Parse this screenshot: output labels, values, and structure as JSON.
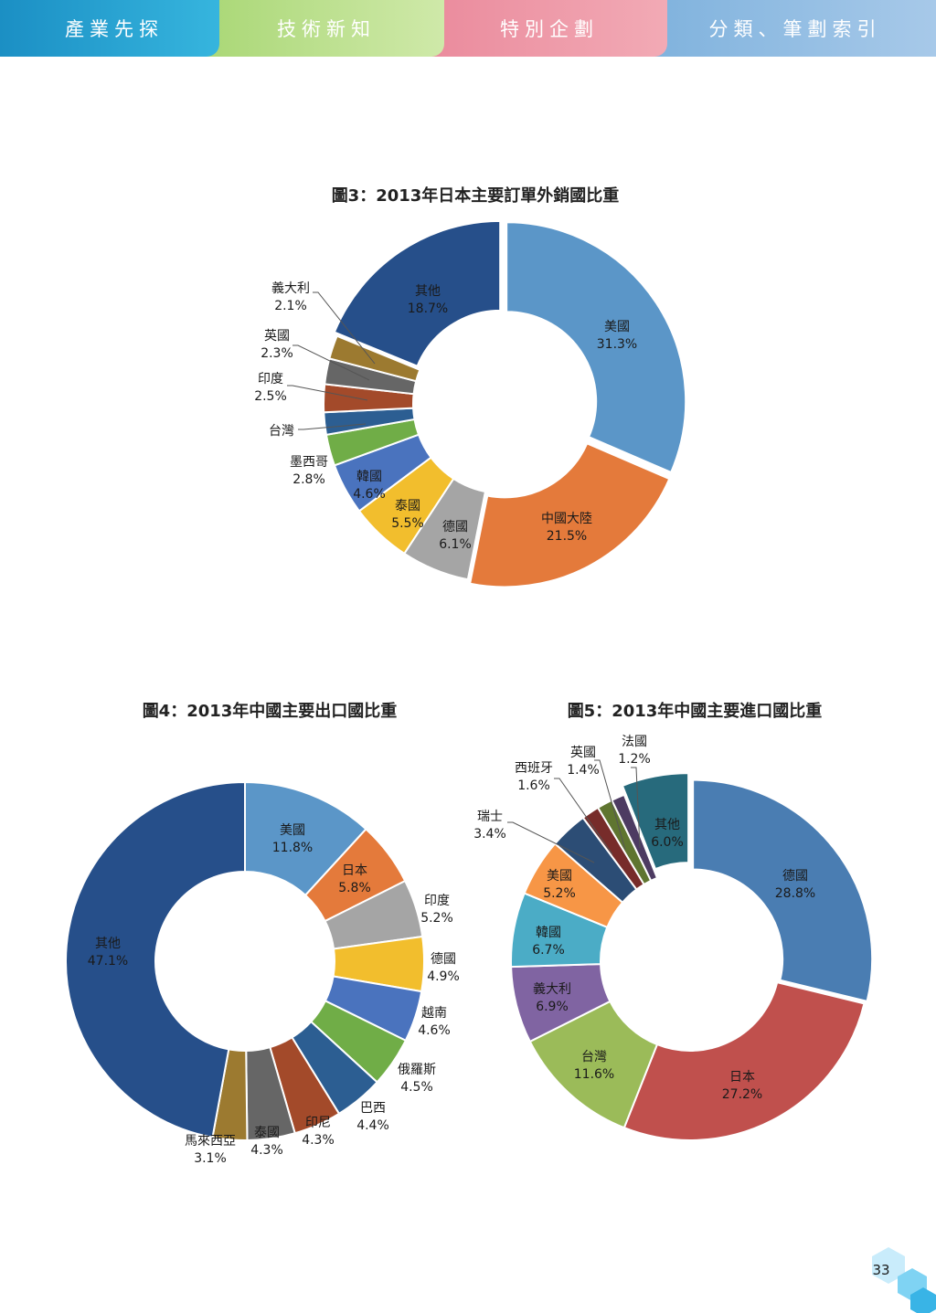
{
  "nav": {
    "tabs": [
      {
        "label": "產業先探"
      },
      {
        "label": "技術新知"
      },
      {
        "label": "特別企劃"
      },
      {
        "label": "分類、筆劃索引"
      }
    ]
  },
  "page_number": "33",
  "chart_data": [
    {
      "type": "pie",
      "title": "圖3：2013年日本主要訂單外銷國比重",
      "slices": [
        {
          "label": "美國",
          "value": 31.3,
          "value_text": "31.3%",
          "color": "#5b96c8"
        },
        {
          "label": "中國大陸",
          "value": 21.5,
          "value_text": "21.5%",
          "color": "#e47a3b"
        },
        {
          "label": "德國",
          "value": 6.1,
          "value_text": "6.1%",
          "color": "#a5a5a5"
        },
        {
          "label": "泰國",
          "value": 5.5,
          "value_text": "5.5%",
          "color": "#f2be2d"
        },
        {
          "label": "韓國",
          "value": 4.6,
          "value_text": "4.6%",
          "color": "#4a73be"
        },
        {
          "label": "墨西哥",
          "value": 2.8,
          "value_text": "2.8%",
          "color": "#70ad47"
        },
        {
          "label": "台灣",
          "value": 2.0,
          "value_text": "",
          "color": "#2c5e92"
        },
        {
          "label": "印度",
          "value": 2.5,
          "value_text": "2.5%",
          "color": "#a34a2a"
        },
        {
          "label": "英國",
          "value": 2.3,
          "value_text": "2.3%",
          "color": "#666666"
        },
        {
          "label": "義大利",
          "value": 2.1,
          "value_text": "2.1%",
          "color": "#9c7a30"
        },
        {
          "label": "其他",
          "value": 18.7,
          "value_text": "18.7%",
          "color": "#264f8a"
        }
      ]
    },
    {
      "type": "pie",
      "title": "圖4：2013年中國主要出口國比重",
      "slices": [
        {
          "label": "美國",
          "value": 11.8,
          "value_text": "11.8%",
          "color": "#5b96c8"
        },
        {
          "label": "日本",
          "value": 5.8,
          "value_text": "5.8%",
          "color": "#e47a3b"
        },
        {
          "label": "印度",
          "value": 5.2,
          "value_text": "5.2%",
          "color": "#a5a5a5"
        },
        {
          "label": "德國",
          "value": 4.9,
          "value_text": "4.9%",
          "color": "#f2be2d"
        },
        {
          "label": "越南",
          "value": 4.6,
          "value_text": "4.6%",
          "color": "#4a73be"
        },
        {
          "label": "俄羅斯",
          "value": 4.5,
          "value_text": "4.5%",
          "color": "#70ad47"
        },
        {
          "label": "巴西",
          "value": 4.4,
          "value_text": "4.4%",
          "color": "#2c5e92"
        },
        {
          "label": "印尼",
          "value": 4.3,
          "value_text": "4.3%",
          "color": "#a34a2a"
        },
        {
          "label": "泰國",
          "value": 4.3,
          "value_text": "4.3%",
          "color": "#666666"
        },
        {
          "label": "馬來西亞",
          "value": 3.1,
          "value_text": "3.1%",
          "color": "#9c7a30"
        },
        {
          "label": "其他",
          "value": 47.1,
          "value_text": "47.1%",
          "color": "#264f8a"
        }
      ]
    },
    {
      "type": "pie",
      "title": "圖5：2013年中國主要進口國比重",
      "slices": [
        {
          "label": "德國",
          "value": 28.8,
          "value_text": "28.8%",
          "color": "#4a7db2"
        },
        {
          "label": "日本",
          "value": 27.2,
          "value_text": "27.2%",
          "color": "#c0504d"
        },
        {
          "label": "台灣",
          "value": 11.6,
          "value_text": "11.6%",
          "color": "#9bbb59"
        },
        {
          "label": "義大利",
          "value": 6.9,
          "value_text": "6.9%",
          "color": "#8064a2"
        },
        {
          "label": "韓國",
          "value": 6.7,
          "value_text": "6.7%",
          "color": "#4bacc6"
        },
        {
          "label": "美國",
          "value": 5.2,
          "value_text": "5.2%",
          "color": "#f79646"
        },
        {
          "label": "瑞士",
          "value": 3.4,
          "value_text": "3.4%",
          "color": "#2c4d75"
        },
        {
          "label": "西班牙",
          "value": 1.6,
          "value_text": "1.6%",
          "color": "#772c2a"
        },
        {
          "label": "英國",
          "value": 1.4,
          "value_text": "1.4%",
          "color": "#5f7530"
        },
        {
          "label": "法國",
          "value": 1.2,
          "value_text": "1.2%",
          "color": "#4d3b62"
        },
        {
          "label": "其他",
          "value": 6.0,
          "value_text": "6.0%",
          "color": "#276a7c"
        }
      ]
    }
  ]
}
